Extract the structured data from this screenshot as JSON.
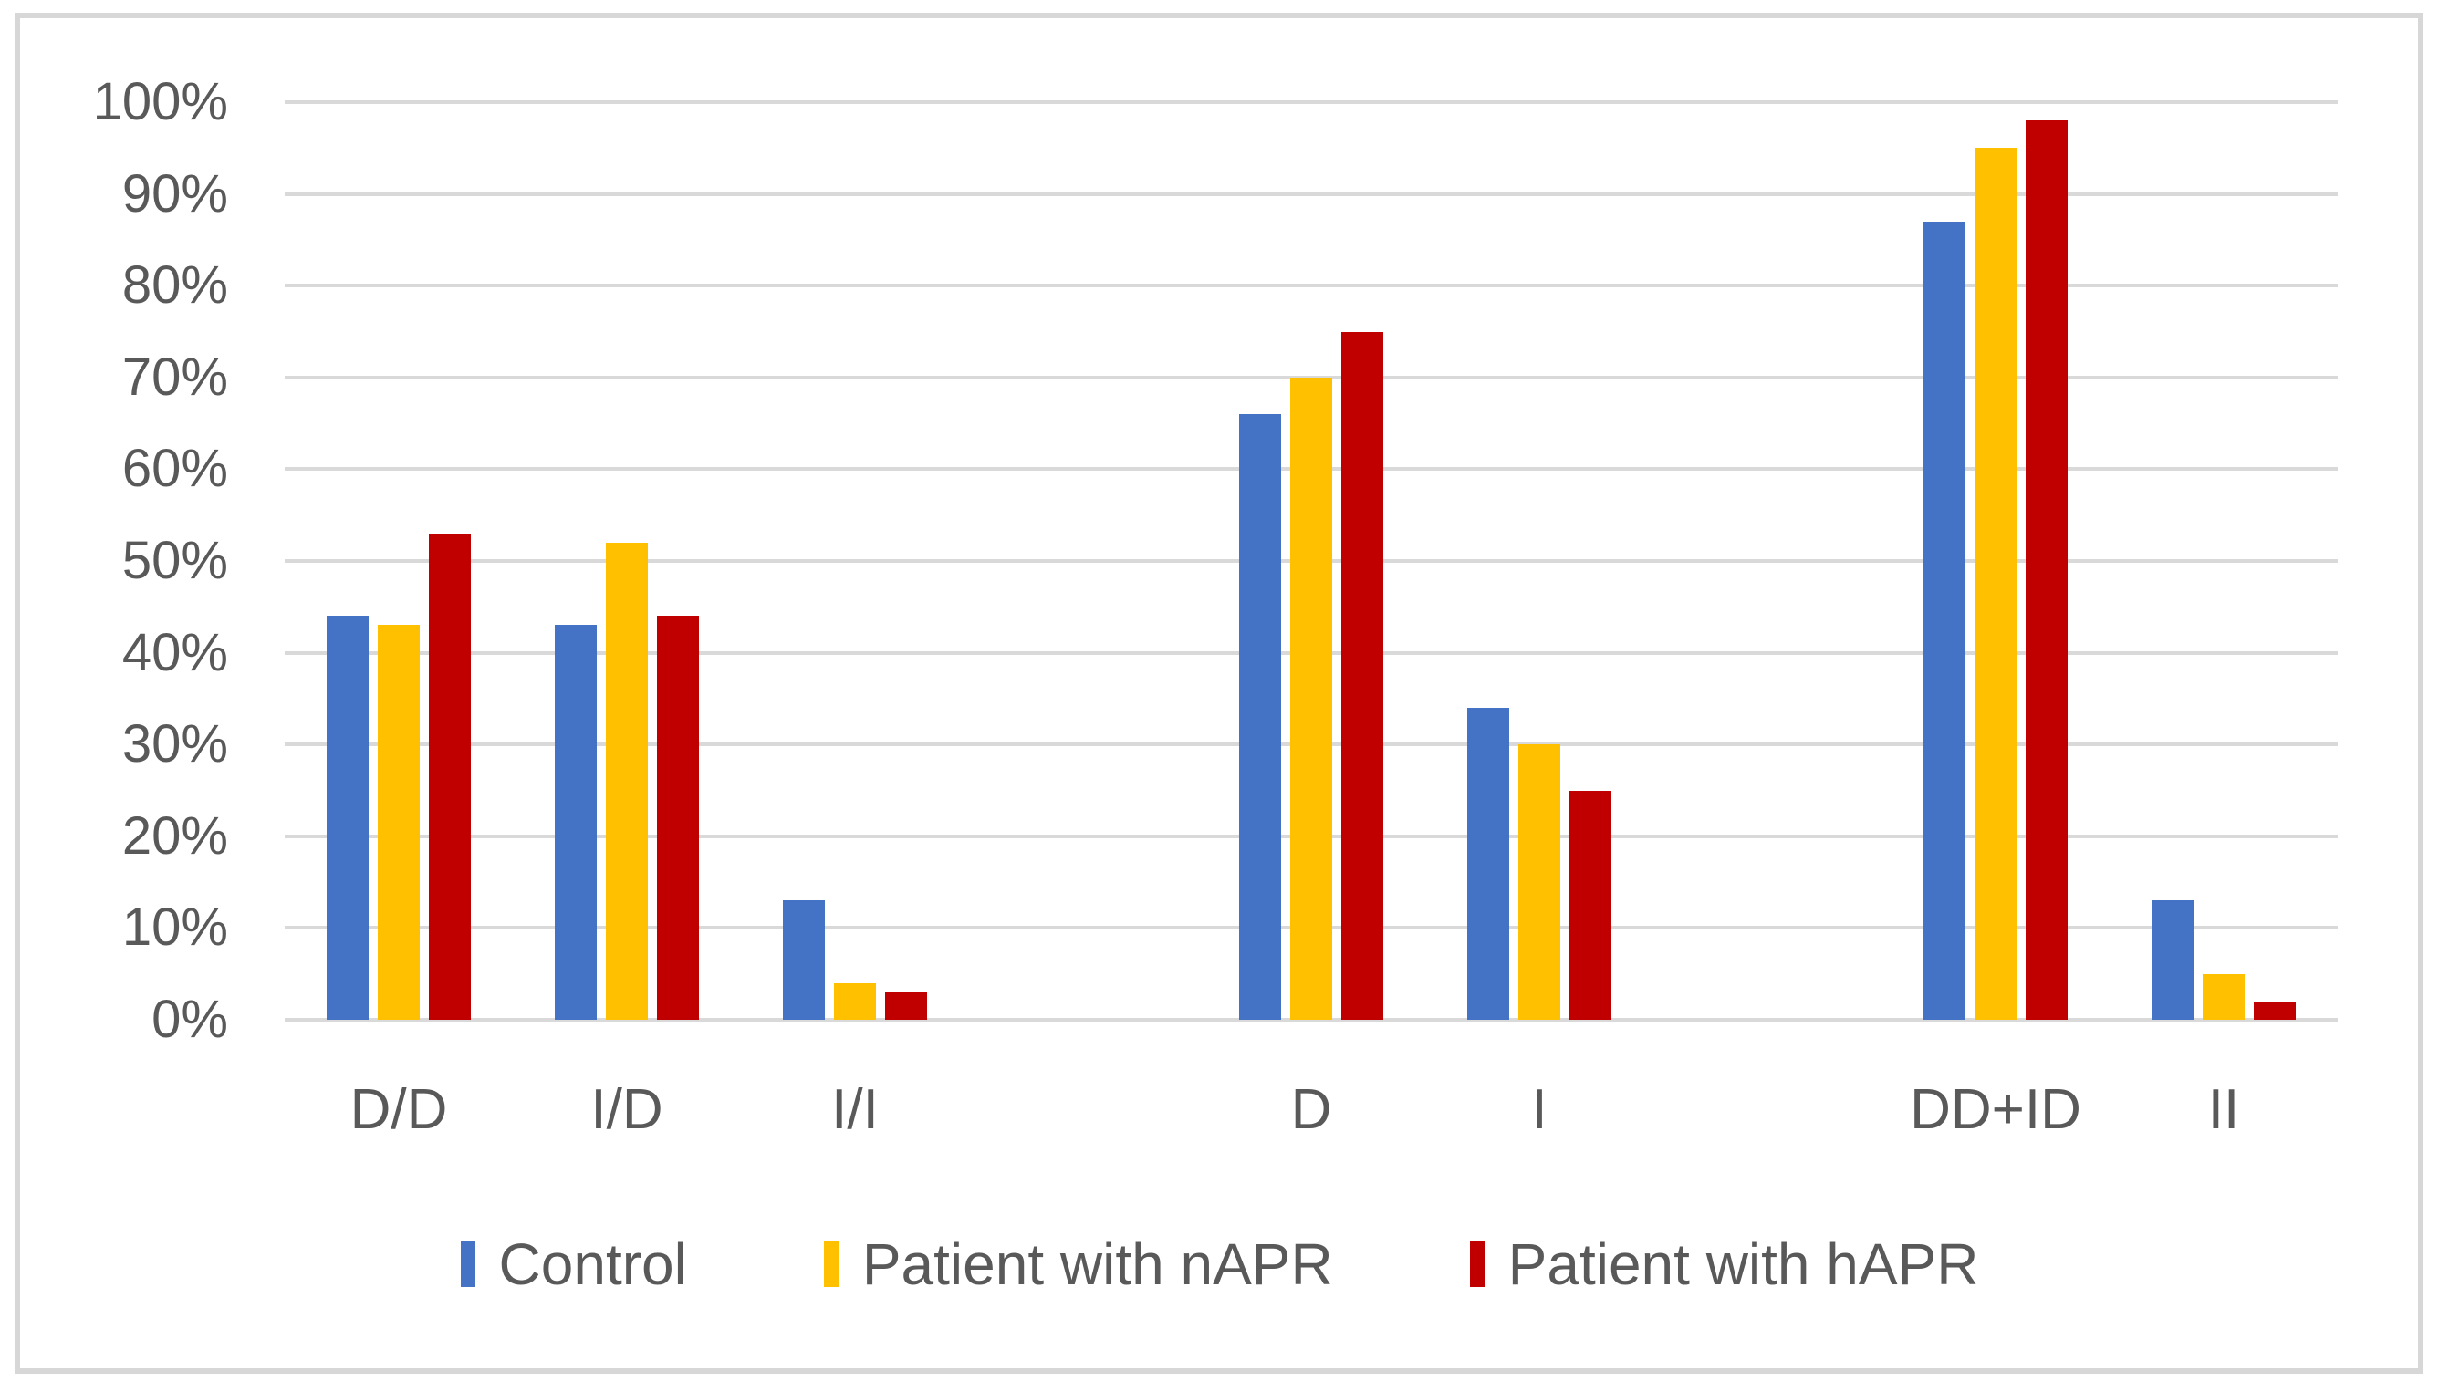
{
  "chart_data": {
    "type": "bar",
    "title": "",
    "xlabel": "",
    "ylabel": "",
    "categories": [
      "D/D",
      "I/D",
      "I/I",
      "",
      "D",
      "I",
      "",
      "DD+ID",
      "II"
    ],
    "series": [
      {
        "name": "Control",
        "color": "#4472C4",
        "values": [
          44,
          43,
          13,
          null,
          66,
          34,
          null,
          87,
          13
        ]
      },
      {
        "name": "Patient with nAPR",
        "color": "#FFC000",
        "values": [
          43,
          52,
          4,
          null,
          70,
          30,
          null,
          95,
          5
        ]
      },
      {
        "name": "Patient with hAPR",
        "color": "#C00000",
        "values": [
          53,
          44,
          3,
          null,
          75,
          25,
          null,
          98,
          2
        ]
      }
    ],
    "ylim": [
      0,
      100
    ],
    "ytick_step": 10,
    "ytick_labels": [
      "0%",
      "10%",
      "20%",
      "30%",
      "40%",
      "50%",
      "60%",
      "70%",
      "80%",
      "90%",
      "100%"
    ],
    "grid": true,
    "gridline_color": "#d9d9d9",
    "text_color": "#595959",
    "legend_position": "bottom"
  }
}
